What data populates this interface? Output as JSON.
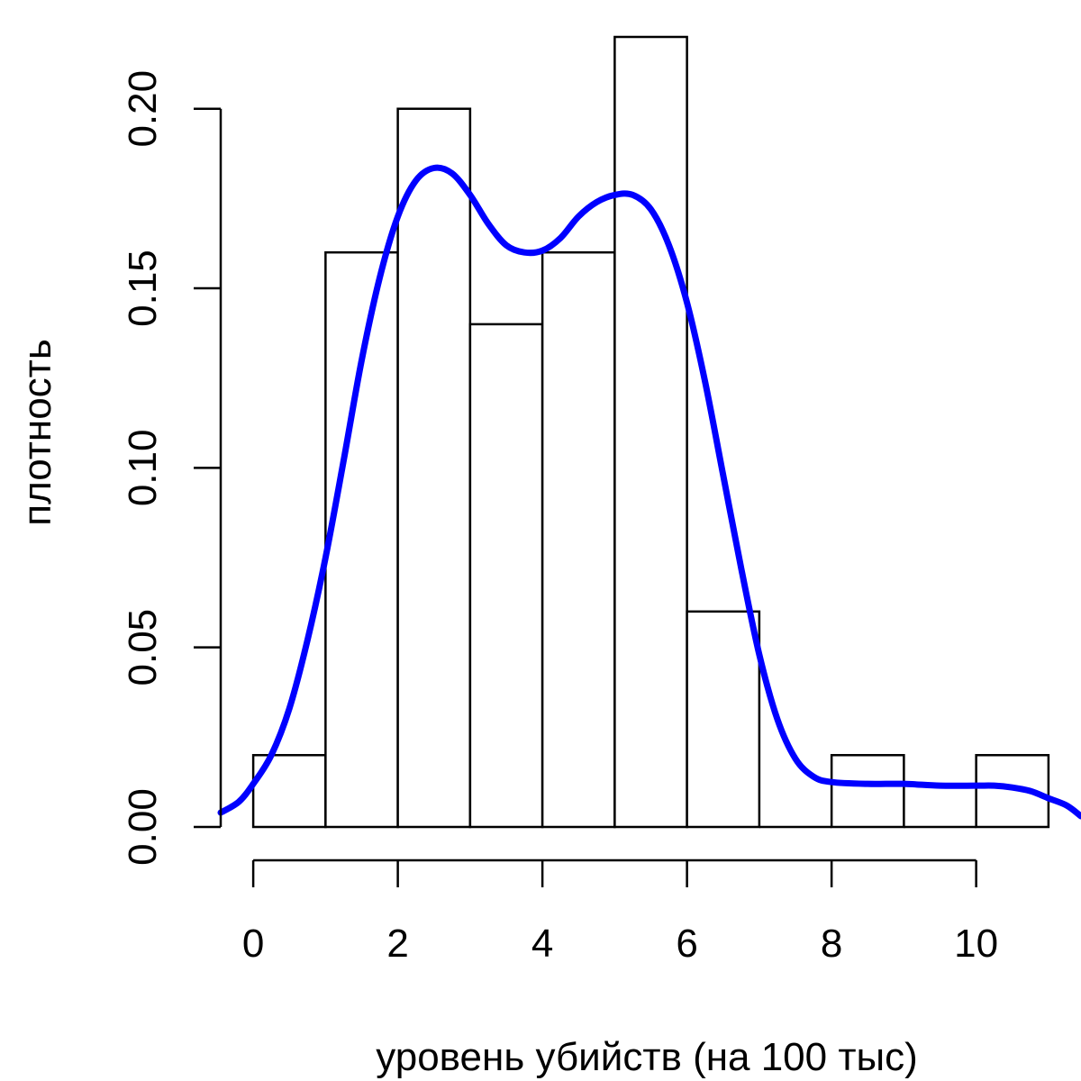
{
  "chart_data": {
    "type": "histogram",
    "title": "",
    "xlabel": "уровень убийств (на 100 тыс)",
    "ylabel": "плотность",
    "xlim": [
      -0.45,
      11.45
    ],
    "ylim": [
      0,
      0.22
    ],
    "x_ticks": [
      0,
      2,
      4,
      6,
      8,
      10
    ],
    "x_tick_labels": [
      "0",
      "2",
      "4",
      "6",
      "8",
      "10"
    ],
    "y_ticks": [
      0,
      0.05,
      0.1,
      0.15,
      0.2
    ],
    "y_tick_labels": [
      "0.00",
      "0.05",
      "0.10",
      "0.15",
      "0.20"
    ],
    "bins": [
      {
        "x0": 0,
        "x1": 1,
        "density": 0.02
      },
      {
        "x0": 1,
        "x1": 2,
        "density": 0.16
      },
      {
        "x0": 2,
        "x1": 3,
        "density": 0.2
      },
      {
        "x0": 3,
        "x1": 4,
        "density": 0.14
      },
      {
        "x0": 4,
        "x1": 5,
        "density": 0.16
      },
      {
        "x0": 5,
        "x1": 6,
        "density": 0.22
      },
      {
        "x0": 6,
        "x1": 7,
        "density": 0.06
      },
      {
        "x0": 7,
        "x1": 8,
        "density": 0.0
      },
      {
        "x0": 8,
        "x1": 9,
        "density": 0.02
      },
      {
        "x0": 9,
        "x1": 10,
        "density": 0.0
      },
      {
        "x0": 10,
        "x1": 11,
        "density": 0.02
      }
    ],
    "density_curve": {
      "color": "#0000ff",
      "points": [
        [
          -0.45,
          0.004
        ],
        [
          -0.2,
          0.007
        ],
        [
          0,
          0.012
        ],
        [
          0.25,
          0.02
        ],
        [
          0.5,
          0.033
        ],
        [
          0.75,
          0.052
        ],
        [
          1.0,
          0.075
        ],
        [
          1.25,
          0.102
        ],
        [
          1.5,
          0.13
        ],
        [
          1.75,
          0.153
        ],
        [
          2.0,
          0.17
        ],
        [
          2.25,
          0.18
        ],
        [
          2.5,
          0.1835
        ],
        [
          2.75,
          0.182
        ],
        [
          3.0,
          0.176
        ],
        [
          3.25,
          0.168
        ],
        [
          3.5,
          0.162
        ],
        [
          3.75,
          0.16
        ],
        [
          4.0,
          0.1605
        ],
        [
          4.25,
          0.164
        ],
        [
          4.5,
          0.17
        ],
        [
          4.75,
          0.174
        ],
        [
          5.0,
          0.176
        ],
        [
          5.25,
          0.176
        ],
        [
          5.5,
          0.172
        ],
        [
          5.75,
          0.162
        ],
        [
          6.0,
          0.146
        ],
        [
          6.25,
          0.124
        ],
        [
          6.5,
          0.098
        ],
        [
          6.75,
          0.072
        ],
        [
          7.0,
          0.048
        ],
        [
          7.25,
          0.03
        ],
        [
          7.5,
          0.019
        ],
        [
          7.75,
          0.014
        ],
        [
          8.0,
          0.0125
        ],
        [
          8.5,
          0.012
        ],
        [
          9.0,
          0.012
        ],
        [
          9.5,
          0.0115
        ],
        [
          10.0,
          0.0115
        ],
        [
          10.25,
          0.0115
        ],
        [
          10.5,
          0.011
        ],
        [
          10.75,
          0.01
        ],
        [
          11.0,
          0.008
        ],
        [
          11.25,
          0.006
        ],
        [
          11.45,
          0.003
        ]
      ]
    },
    "bar_fill": "#ffffff",
    "bar_stroke": "#000000",
    "grid": false,
    "legend": "none"
  }
}
